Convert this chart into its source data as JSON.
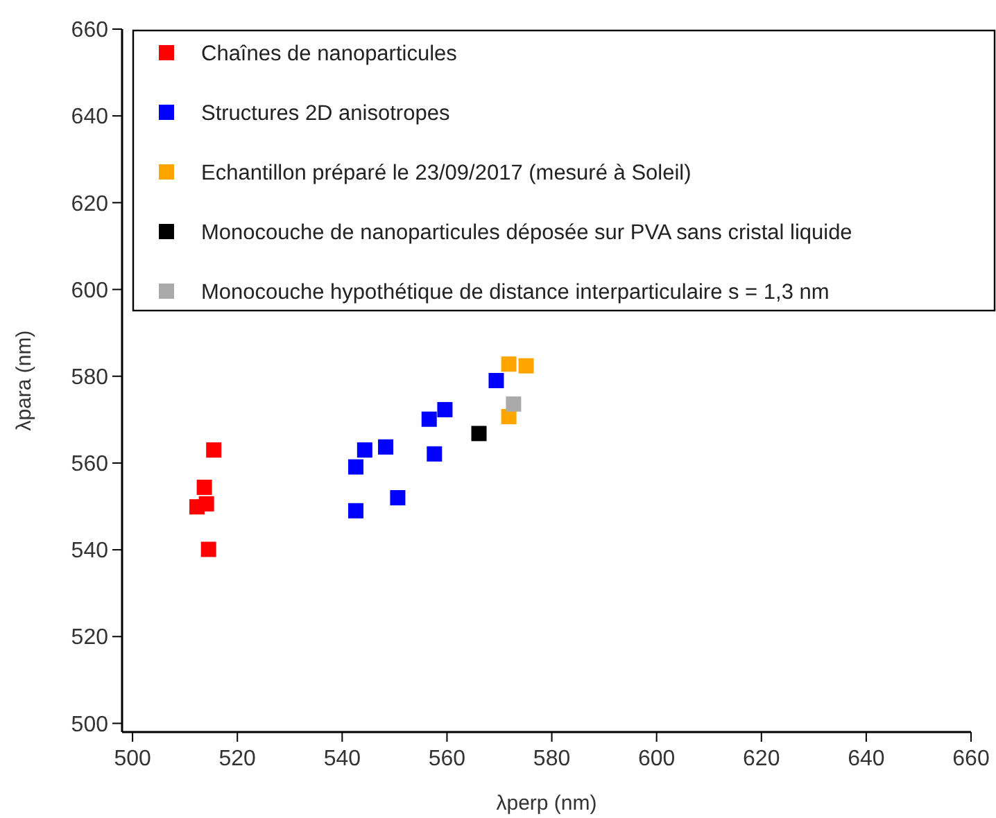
{
  "chart_data": {
    "type": "scatter",
    "xlabel": "λperp (nm)",
    "ylabel": "λpara (nm)",
    "xlim": [
      498,
      660
    ],
    "ylim": [
      498,
      660
    ],
    "xticks": [
      500,
      520,
      540,
      560,
      580,
      600,
      620,
      640,
      660
    ],
    "yticks": [
      500,
      520,
      540,
      560,
      580,
      600,
      620,
      640,
      660
    ],
    "marker": "square",
    "legend": "top",
    "grid": false,
    "series": [
      {
        "name": "Chaînes de nanoparticules",
        "color": "#ff0000",
        "x": [
          512.3,
          513.7,
          514.1,
          514.5,
          515.5
        ],
        "values": [
          549.9,
          554.4,
          550.6,
          540.1,
          563.0
        ]
      },
      {
        "name": "Structures 2D anisotropes",
        "color": "#0000ff",
        "x": [
          542.6,
          542.6,
          544.3,
          548.3,
          550.6,
          556.6,
          557.6,
          559.6,
          569.4
        ],
        "values": [
          559.1,
          549.0,
          563.0,
          563.7,
          552,
          570.1,
          562.1,
          572.3,
          579.0
        ]
      },
      {
        "name": "Echantillon préparé le 23/09/2017 (mesuré à Soleil)",
        "color": "#ffa500",
        "x": [
          571.8,
          575.1,
          571.8
        ],
        "values": [
          582.8,
          582.4,
          570.7
        ]
      },
      {
        "name": "Monocouche de nanoparticules déposée sur PVA sans cristal liquide",
        "color": "#000000",
        "x": [
          566.1
        ],
        "values": [
          566.8
        ]
      },
      {
        "name": "Monocouche hypothétique de distance interparticulaire s = 1,3 nm",
        "color": "#aaaaaa",
        "x": [
          572.7
        ],
        "values": [
          573.6
        ]
      }
    ]
  }
}
